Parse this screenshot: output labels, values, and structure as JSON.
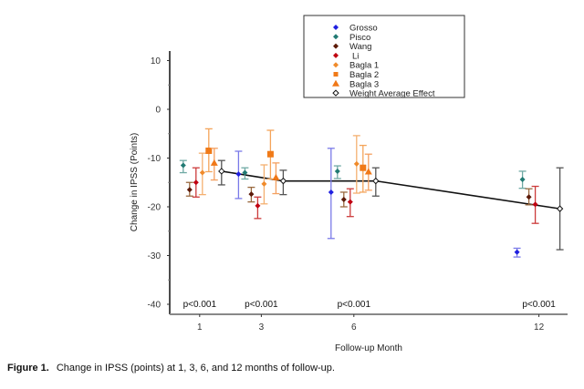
{
  "chart_data": {
    "type": "scatter",
    "subtype": "forest-plot-with-error-bars",
    "title": "",
    "xlabel": "Follow-up Month",
    "ylabel": "Change in IPSS (Points)",
    "ylim": [
      -42,
      12
    ],
    "yticks": [
      10,
      0,
      -10,
      -20,
      -30,
      -40
    ],
    "x_categories": [
      "1",
      "3",
      "6",
      "12"
    ],
    "x_values": [
      1,
      3,
      6,
      12
    ],
    "grid": false,
    "legend_position": "top-center",
    "series": [
      {
        "name": "Grosso",
        "marker": "diamond",
        "color": "#1f1fe0",
        "bar_color": "#7a7ae8",
        "points": [
          {
            "month": 3,
            "value": -13.3,
            "ci": [
              -8.6,
              -18.3
            ]
          },
          {
            "month": 6,
            "value": -17.0,
            "ci": [
              -8.0,
              -26.5
            ]
          },
          {
            "month": 12,
            "value": -29.3,
            "ci": [
              -28.5,
              -30.3
            ]
          }
        ]
      },
      {
        "name": "Pisco",
        "marker": "diamond",
        "color": "#217a73",
        "bar_color": "#6fa9a4",
        "points": [
          {
            "month": 1,
            "value": -11.5,
            "ci": [
              -10.5,
              -13.0
            ]
          },
          {
            "month": 3,
            "value": -13.0,
            "ci": [
              -12.0,
              -14.3
            ]
          },
          {
            "month": 6,
            "value": -12.7,
            "ci": [
              -11.6,
              -14.2
            ]
          },
          {
            "month": 12,
            "value": -14.4,
            "ci": [
              -12.7,
              -16.2
            ]
          }
        ]
      },
      {
        "name": "Wang",
        "marker": "diamond",
        "color": "#5c1a08",
        "bar_color": "#9a6a40",
        "points": [
          {
            "month": 1,
            "value": -16.5,
            "ci": [
              -15.0,
              -17.8
            ]
          },
          {
            "month": 3,
            "value": -17.4,
            "ci": [
              -16.0,
              -19.0
            ]
          },
          {
            "month": 6,
            "value": -18.5,
            "ci": [
              -17.0,
              -20.0
            ]
          },
          {
            "month": 12,
            "value": -18.0,
            "ci": [
              -16.3,
              -19.6
            ]
          }
        ]
      },
      {
        "name": "Li",
        "marker": "diamond",
        "color": "#c00010",
        "bar_color": "#cc3a3a",
        "points": [
          {
            "month": 1,
            "value": -15.0,
            "ci": [
              -12.0,
              -18.0
            ]
          },
          {
            "month": 3,
            "value": -19.8,
            "ci": [
              -18.0,
              -22.4
            ]
          },
          {
            "month": 6,
            "value": -19.0,
            "ci": [
              -16.3,
              -22.0
            ]
          },
          {
            "month": 12,
            "value": -19.5,
            "ci": [
              -15.8,
              -23.4
            ]
          }
        ]
      },
      {
        "name": "Bagla 1",
        "marker": "diamond",
        "color": "#f08a2a",
        "bar_color": "#f4b070",
        "points": [
          {
            "month": 1,
            "value": -13.0,
            "ci": [
              -9.0,
              -17.5
            ]
          },
          {
            "month": 3,
            "value": -15.3,
            "ci": [
              -11.4,
              -19.4
            ]
          },
          {
            "month": 6,
            "value": -11.2,
            "ci": [
              -5.4,
              -17.2
            ]
          }
        ]
      },
      {
        "name": "Bagla 2",
        "marker": "square",
        "color": "#f07a18",
        "bar_color": "#f4a45a",
        "points": [
          {
            "month": 1,
            "value": -8.5,
            "ci": [
              -4.0,
              -12.8
            ]
          },
          {
            "month": 3,
            "value": -9.2,
            "ci": [
              -4.3,
              -14.3
            ]
          },
          {
            "month": 6,
            "value": -12.0,
            "ci": [
              -7.4,
              -17.0
            ]
          }
        ]
      },
      {
        "name": "Bagla 3",
        "marker": "triangle",
        "color": "#f07818",
        "bar_color": "#f4a060",
        "points": [
          {
            "month": 1,
            "value": -11.0,
            "ci": [
              -8.0,
              -14.5
            ]
          },
          {
            "month": 3,
            "value": -14.0,
            "ci": [
              -11.0,
              -17.3
            ]
          },
          {
            "month": 6,
            "value": -12.8,
            "ci": [
              -9.2,
              -16.6
            ]
          }
        ]
      },
      {
        "name": "Weight Average Effect",
        "marker": "open-diamond",
        "color": "#111111",
        "bar_color": "#555555",
        "connected": true,
        "points": [
          {
            "month": 1,
            "value": -12.7,
            "ci": [
              -10.5,
              -15.5
            ]
          },
          {
            "month": 3,
            "value": -14.7,
            "ci": [
              -12.5,
              -17.5
            ]
          },
          {
            "month": 6,
            "value": -14.7,
            "ci": [
              -12.0,
              -17.8
            ]
          },
          {
            "month": 12,
            "value": -20.4,
            "ci": [
              -12.0,
              -28.8
            ]
          }
        ]
      }
    ],
    "annotations": [
      {
        "month": 1,
        "text": "p<0.001"
      },
      {
        "month": 3,
        "text": "p<0.001"
      },
      {
        "month": 6,
        "text": "p<0.001"
      },
      {
        "month": 12,
        "text": "p<0.001"
      }
    ]
  },
  "caption": {
    "label": "Figure 1.",
    "text": "Change in IPSS (points) at 1, 3, 6, and 12 months of follow-up."
  }
}
